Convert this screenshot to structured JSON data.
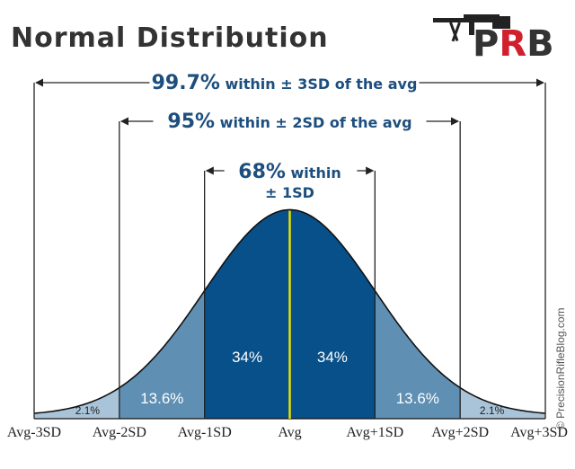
{
  "title": "Normal Distribution",
  "logo": {
    "text": "PRB",
    "first": "P",
    "middle": "R",
    "last": "B"
  },
  "watermark": "© PrecisionRifleBlog.com",
  "colors": {
    "outer": "#a9c4d8",
    "mid": "#5f8fb3",
    "inner": "#08508a",
    "mean_line": "#e8e000",
    "annotation": "#1c4e7e",
    "logo_red": "#d0202e",
    "logo_dark": "#333333"
  },
  "chart_data": {
    "type": "area",
    "distribution": "normal",
    "mean": 0,
    "sd": 1,
    "xlim": [
      -3,
      3
    ],
    "x_ticks": [
      -3,
      -2,
      -1,
      0,
      1,
      2,
      3
    ],
    "tick_labels": [
      "Avg-3SD",
      "Avg-2SD",
      "Avg-1SD",
      "Avg",
      "Avg+1SD",
      "Avg+2SD",
      "Avg+3SD"
    ],
    "regions": [
      {
        "from": -3,
        "to": -2,
        "percent": 2.1,
        "label": "2.1%",
        "shade": "outer"
      },
      {
        "from": -2,
        "to": -1,
        "percent": 13.6,
        "label": "13.6%",
        "shade": "mid"
      },
      {
        "from": -1,
        "to": 0,
        "percent": 34,
        "label": "34%",
        "shade": "inner"
      },
      {
        "from": 0,
        "to": 1,
        "percent": 34,
        "label": "34%",
        "shade": "inner"
      },
      {
        "from": 1,
        "to": 2,
        "percent": 13.6,
        "label": "13.6%",
        "shade": "mid"
      },
      {
        "from": 2,
        "to": 3,
        "percent": 2.1,
        "label": "2.1%",
        "shade": "outer"
      }
    ],
    "annotations": [
      {
        "sd": 3,
        "strong": "99.7%",
        "rest": " within ± 3SD of the avg"
      },
      {
        "sd": 2,
        "strong": "95%",
        "rest": " within ± 2SD of the avg"
      },
      {
        "sd": 1,
        "strong": "68%",
        "rest": " within",
        "line2": "± 1SD"
      }
    ]
  }
}
